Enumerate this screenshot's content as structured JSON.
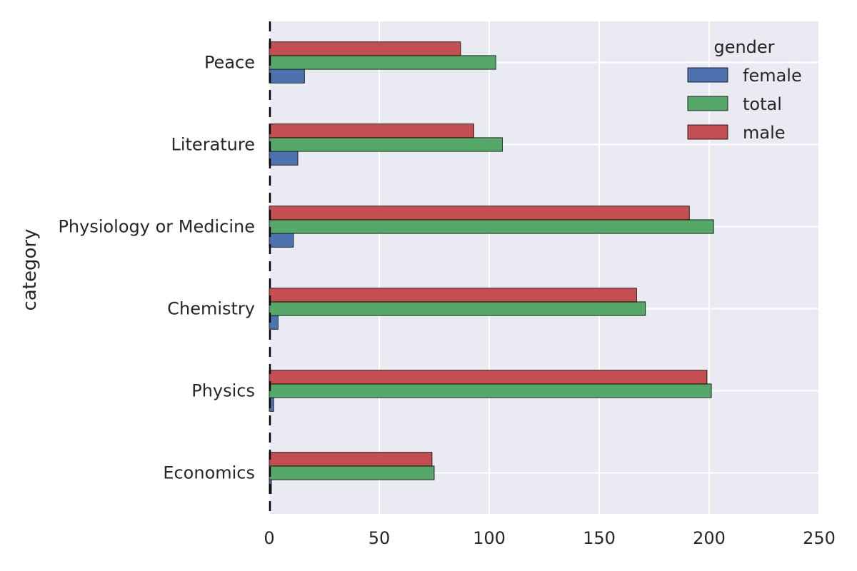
{
  "chart_data": {
    "type": "bar",
    "orientation": "horizontal",
    "title": "",
    "xlabel": "",
    "ylabel": "category",
    "categories": [
      "Peace",
      "Literature",
      "Physiology or Medicine",
      "Chemistry",
      "Physics",
      "Economics"
    ],
    "xlim": [
      0,
      250
    ],
    "xticks": [
      "0",
      "50",
      "100",
      "150",
      "200",
      "250"
    ],
    "grid": true,
    "legend": {
      "title": "gender",
      "placement": "top-right"
    },
    "series": [
      {
        "name": "female",
        "color": "#4c72b0",
        "values": [
          16,
          13,
          11,
          4,
          2,
          1
        ]
      },
      {
        "name": "total",
        "color": "#55a868",
        "values": [
          103,
          106,
          202,
          171,
          201,
          75
        ]
      },
      {
        "name": "male",
        "color": "#c44e52",
        "values": [
          87,
          93,
          191,
          167,
          199,
          74
        ]
      }
    ]
  }
}
